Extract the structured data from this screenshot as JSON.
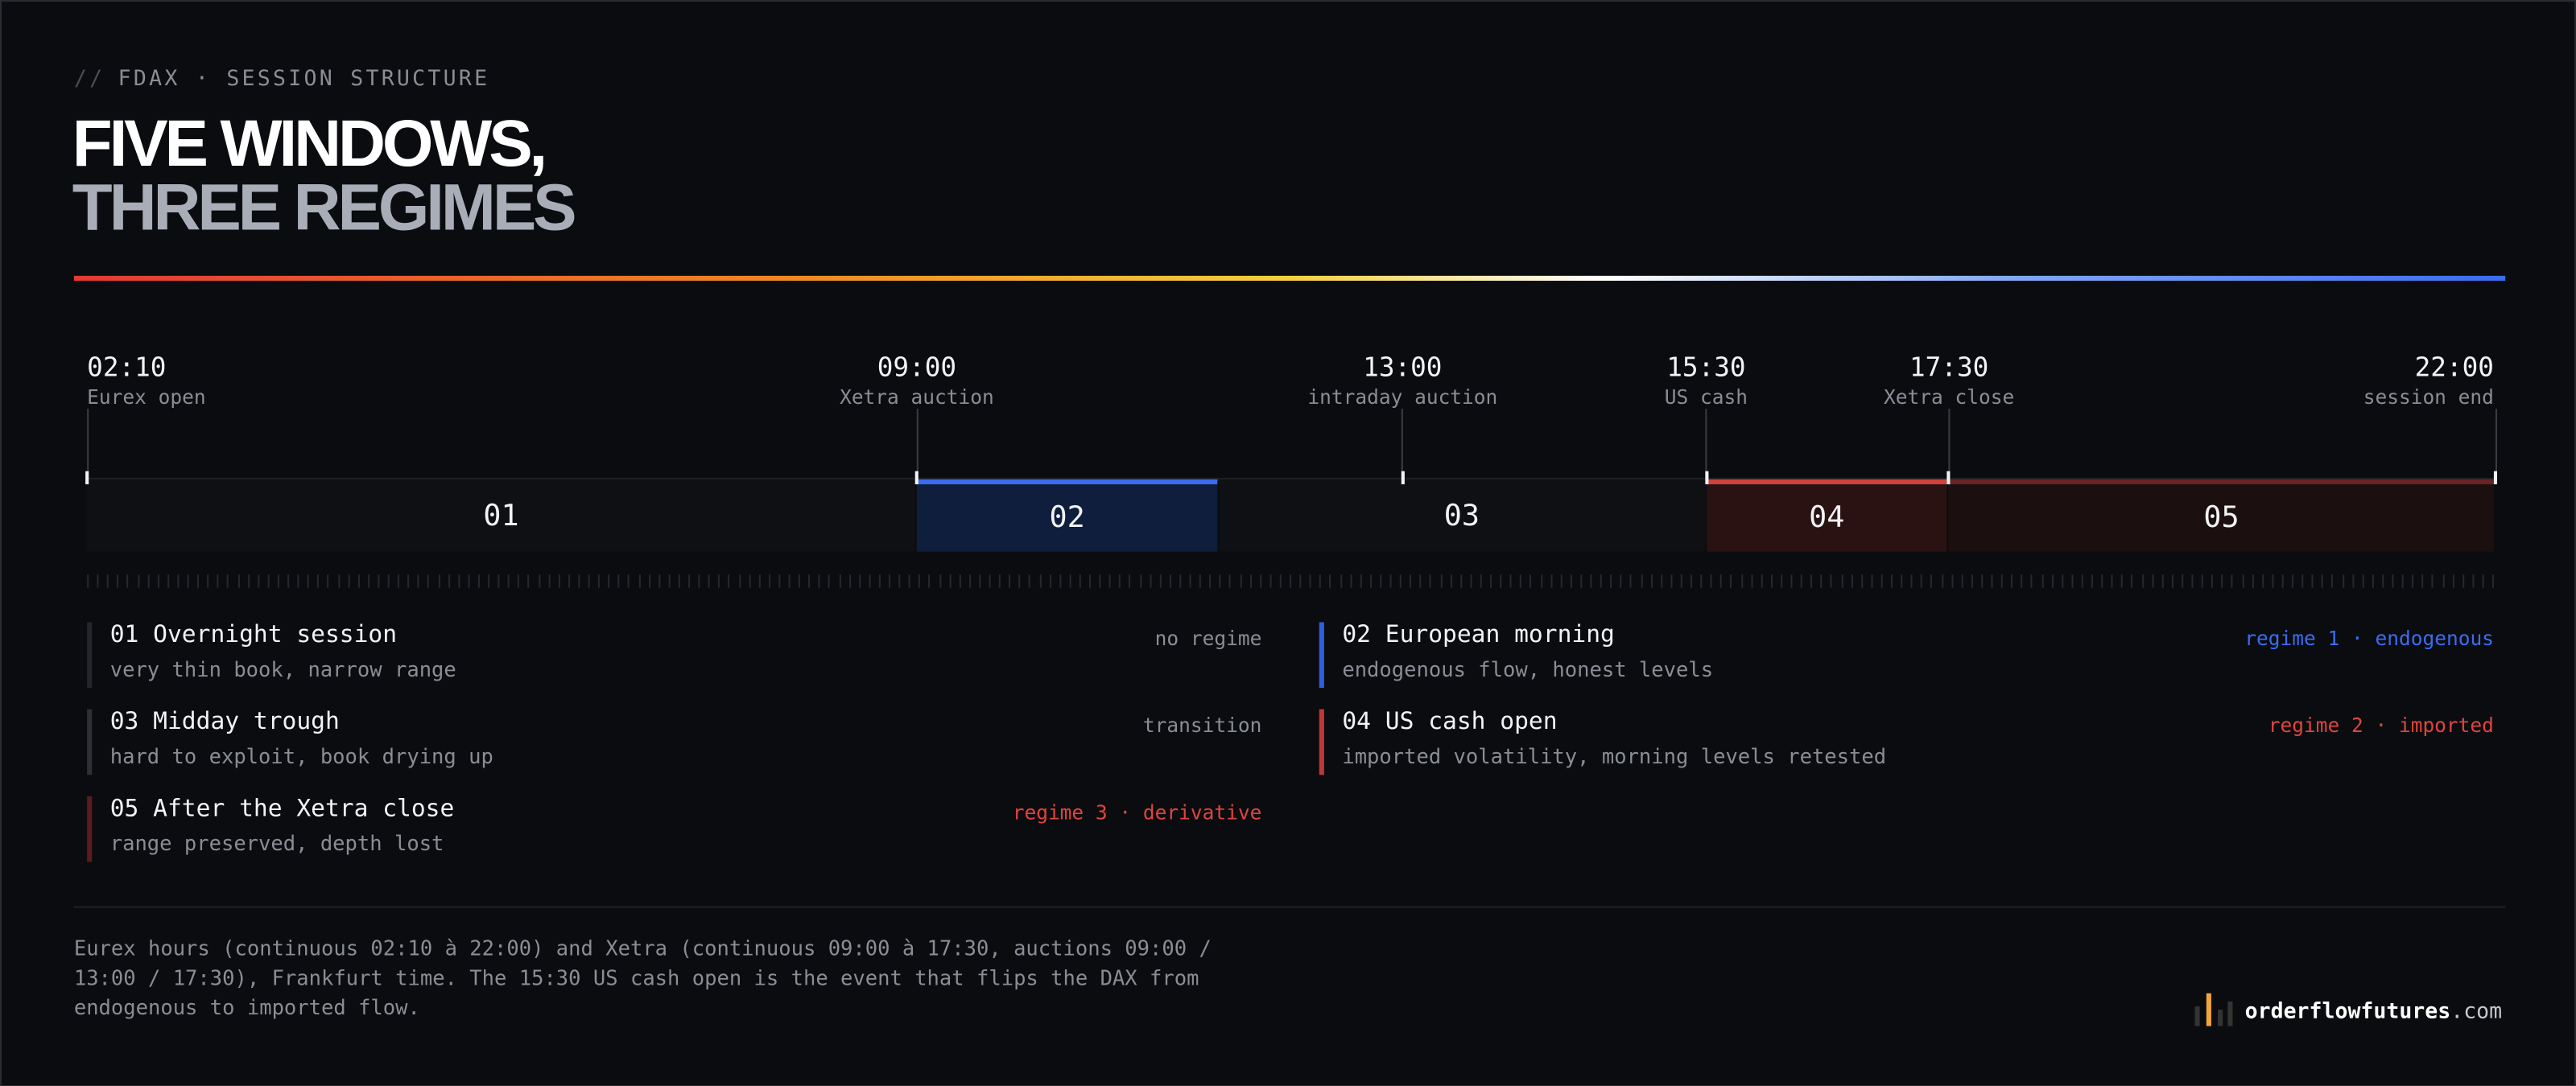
{
  "header": {
    "kicker_prefix": "//",
    "kicker": "FDAX · SESSION STRUCTURE",
    "title_line1": "FIVE WINDOWS,",
    "title_line2": "THREE REGIMES"
  },
  "timeline": {
    "markers": [
      {
        "time": "02:10",
        "label": "Eurex open"
      },
      {
        "time": "09:00",
        "label": "Xetra auction"
      },
      {
        "time": "13:00",
        "label": "intraday auction"
      },
      {
        "time": "15:30",
        "label": "US cash"
      },
      {
        "time": "17:30",
        "label": "Xetra close"
      },
      {
        "time": "22:00",
        "label": "session end"
      }
    ],
    "segments": [
      "01",
      "02",
      "03",
      "04",
      "05"
    ]
  },
  "windows": [
    {
      "title": "01 Overnight session",
      "desc": "very thin book, narrow range",
      "tag": "no regime"
    },
    {
      "title": "02 European morning",
      "desc": "endogenous flow, honest levels",
      "tag": "regime 1 · endogenous"
    },
    {
      "title": "03 Midday trough",
      "desc": "hard to exploit, book drying up",
      "tag": "transition"
    },
    {
      "title": "04 US cash open",
      "desc": "imported volatility, morning levels retested",
      "tag": "regime 2 · imported"
    },
    {
      "title": "05 After the Xetra close",
      "desc": "range preserved, depth lost",
      "tag": "regime 3 · derivative"
    }
  ],
  "footer": {
    "note": "Eurex hours (continuous 02:10 à 22:00) and Xetra (continuous 09:00 à 17:30, auctions 09:00 / 13:00 / 17:30), Frankfurt time. The 15:30 US cash open is the event that flips the DAX from endogenous to imported flow.",
    "brand": "orderflowfutures",
    "brand_domain": ".com"
  }
}
